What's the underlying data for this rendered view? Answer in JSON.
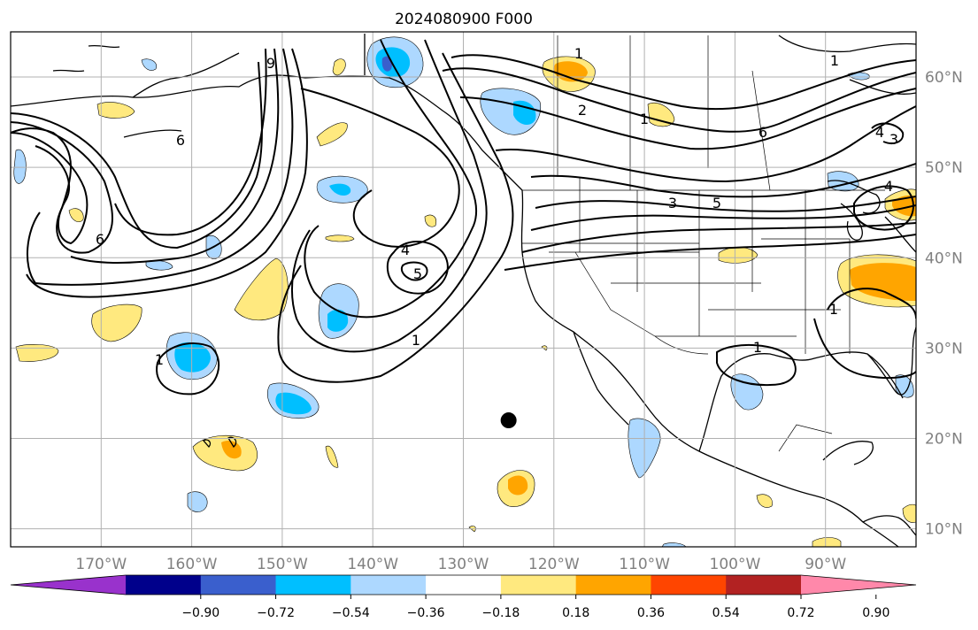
{
  "title": "2024080900 F000",
  "map": {
    "lon_range": [
      -180,
      -80
    ],
    "lat_range": [
      8,
      65
    ],
    "x_ticks": [
      "170°W",
      "160°W",
      "150°W",
      "140°W",
      "130°W",
      "120°W",
      "110°W",
      "100°W",
      "90°W"
    ],
    "y_ticks": [
      "60°N",
      "50°N",
      "40°N",
      "30°N",
      "20°N",
      "10°N"
    ],
    "gridlines": true,
    "marker": {
      "lon": -125,
      "lat": 22,
      "color": "#000000"
    }
  },
  "colorbar": {
    "tick_labels": [
      "−0.90",
      "−0.72",
      "−0.54",
      "−0.36",
      "−0.18",
      "0.18",
      "0.36",
      "0.54",
      "0.72",
      "0.90"
    ],
    "colors": [
      "#9932cc",
      "#00008b",
      "#3a5fcd",
      "#00bfff",
      "#add8ff",
      "#ffffff",
      "#ffe97f",
      "#ffa500",
      "#ff4500",
      "#b22222",
      "#ff88aa"
    ],
    "extend": "both"
  },
  "contour_labels": [
    "6",
    "6",
    "9",
    "4",
    "5",
    "1",
    "1",
    "1",
    "2",
    "1",
    "1",
    "3",
    "5",
    "4",
    "1",
    "1",
    "4",
    "3",
    "6"
  ],
  "colors": {
    "land_line": "#000000",
    "state_line": "#000000",
    "grid": "#b0b0b0",
    "contour": "#000000"
  }
}
